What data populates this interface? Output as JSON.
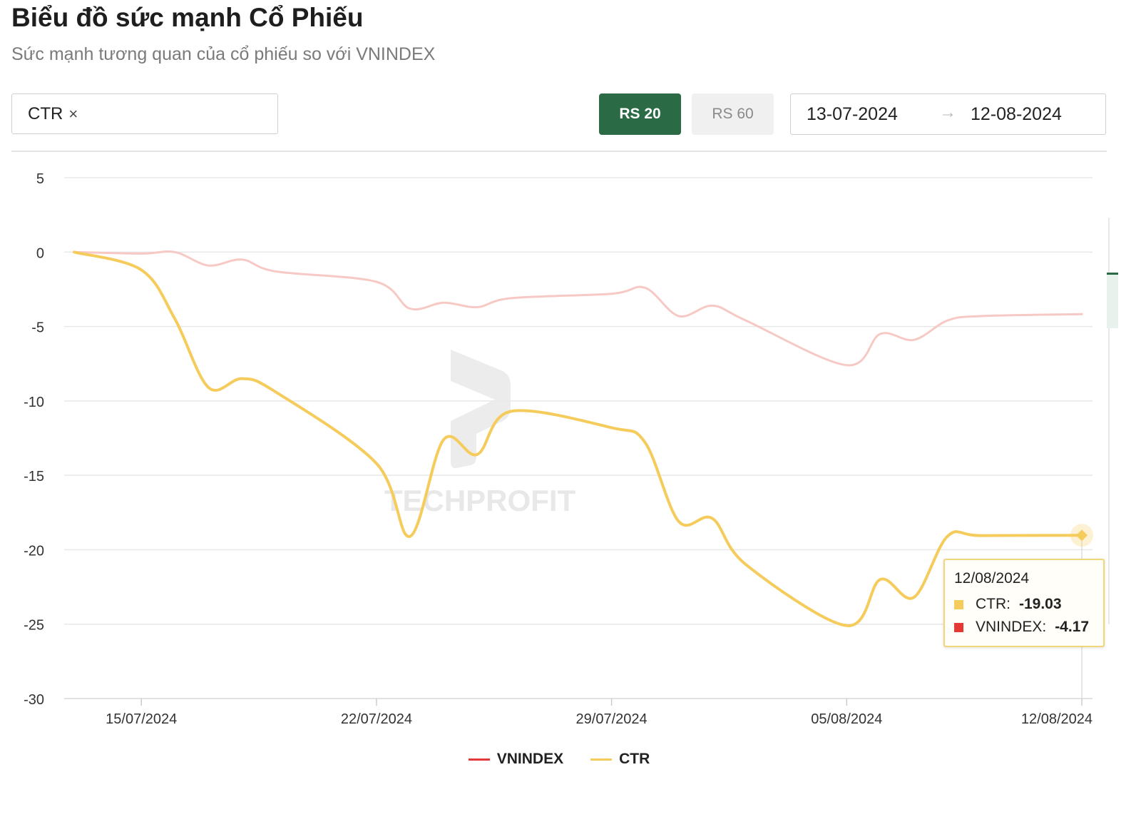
{
  "header": {
    "title": "Biểu đồ sức mạnh Cổ Phiếu",
    "subtitle": "Sức mạnh tương quan của cổ phiếu so với VNINDEX"
  },
  "controls": {
    "ticker": "CTR",
    "close_symbol": "×",
    "rs20_label": "RS 20",
    "rs60_label": "RS 60",
    "date_start": "13-07-2024",
    "date_arrow": "→",
    "date_end": "12-08-2024"
  },
  "watermark": "TECHPROFIT",
  "tooltip": {
    "date": "12/08/2024",
    "ctr_label": "CTR:",
    "ctr_value": "-19.03",
    "vnindex_label": "VNINDEX:",
    "vnindex_value": "-4.17"
  },
  "colors": {
    "accent_green": "#2a6b45",
    "vnindex": "#e53935",
    "ctr": "#f5cc5c"
  },
  "chart_data": {
    "type": "line",
    "title": "",
    "xlabel": "",
    "ylabel": "",
    "ylim": [
      -30,
      5
    ],
    "yticks": [
      5,
      0,
      -5,
      -10,
      -15,
      -20,
      -25,
      -30
    ],
    "xlim": [
      "2024-07-13",
      "2024-08-12"
    ],
    "xticks": [
      "15/07/2024",
      "22/07/2024",
      "29/07/2024",
      "05/08/2024",
      "12/08/2024"
    ],
    "grid": true,
    "legend": "bottom-center",
    "series": [
      {
        "name": "VNINDEX",
        "color": "#e53935",
        "x": [
          "2024-07-13",
          "2024-07-15",
          "2024-07-16",
          "2024-07-17",
          "2024-07-18",
          "2024-07-19",
          "2024-07-22",
          "2024-07-23",
          "2024-07-24",
          "2024-07-25",
          "2024-07-26",
          "2024-07-29",
          "2024-07-30",
          "2024-07-31",
          "2024-08-01",
          "2024-08-02",
          "2024-08-05",
          "2024-08-06",
          "2024-08-07",
          "2024-08-08",
          "2024-08-09",
          "2024-08-12"
        ],
        "values": [
          0,
          -0.1,
          0,
          -0.9,
          -0.5,
          -1.3,
          -2.0,
          -3.8,
          -3.4,
          -3.7,
          -3.1,
          -2.8,
          -2.4,
          -4.3,
          -3.6,
          -4.6,
          -7.6,
          -5.5,
          -5.9,
          -4.6,
          -4.3,
          -4.17
        ]
      },
      {
        "name": "CTR",
        "color": "#f5cc5c",
        "x": [
          "2024-07-13",
          "2024-07-15",
          "2024-07-16",
          "2024-07-17",
          "2024-07-18",
          "2024-07-19",
          "2024-07-22",
          "2024-07-23",
          "2024-07-24",
          "2024-07-25",
          "2024-07-26",
          "2024-07-29",
          "2024-07-30",
          "2024-07-31",
          "2024-08-01",
          "2024-08-02",
          "2024-08-05",
          "2024-08-06",
          "2024-08-07",
          "2024-08-08",
          "2024-08-09",
          "2024-08-12"
        ],
        "values": [
          0,
          -1.2,
          -4.5,
          -9.1,
          -8.5,
          -9.4,
          -14.2,
          -19.1,
          -12.6,
          -13.6,
          -10.7,
          -11.8,
          -12.8,
          -18.1,
          -17.9,
          -21.0,
          -25.1,
          -22.0,
          -23.2,
          -19.1,
          -19.05,
          -19.03
        ]
      }
    ]
  }
}
